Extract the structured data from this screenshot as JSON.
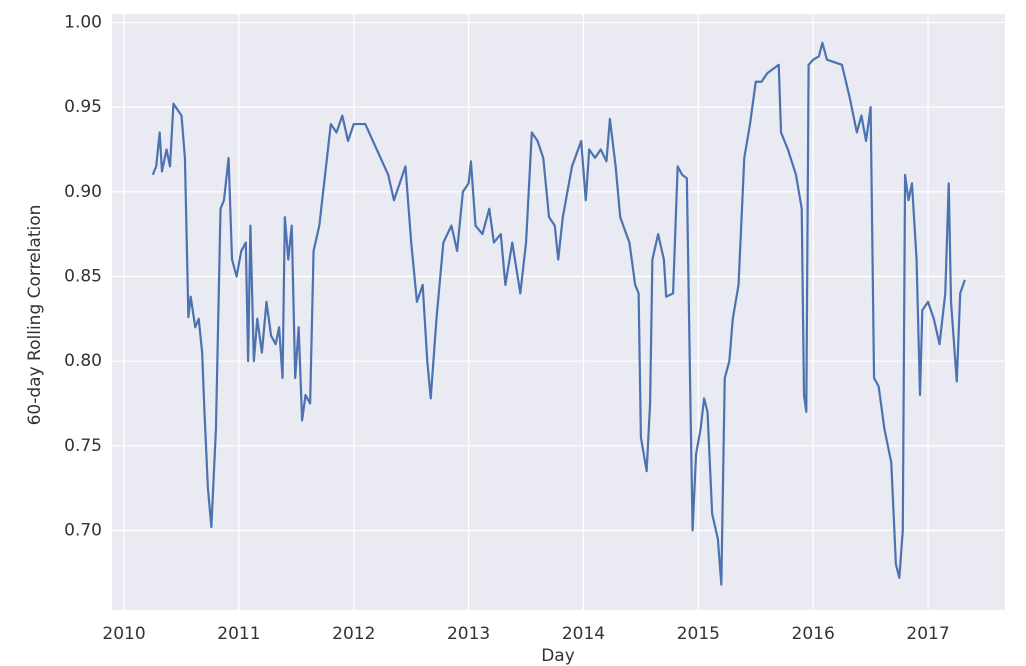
{
  "chart_data": {
    "type": "line",
    "x_label": "Day",
    "y_label": "60-day Rolling Correlation",
    "color": "#4c72b0",
    "grid": true,
    "background": "#eaeaf2",
    "xlim": [
      2009.895,
      2017.67
    ],
    "xticks": [
      2010,
      2011,
      2012,
      2013,
      2014,
      2015,
      2016,
      2017
    ],
    "ylim": [
      0.653,
      1.005
    ],
    "yticks": [
      {
        "value": 0.7,
        "label": "0.70"
      },
      0.75,
      {
        "value": 0.8,
        "label": "0.80"
      },
      0.85,
      {
        "value": 0.9,
        "label": "0.90"
      },
      0.95,
      {
        "value": 1.0,
        "label": "1.00"
      }
    ],
    "x": [
      2010.25,
      2010.28,
      2010.31,
      2010.33,
      2010.37,
      2010.4,
      2010.43,
      2010.47,
      2010.5,
      2010.53,
      2010.56,
      2010.58,
      2010.62,
      2010.65,
      2010.68,
      2010.7,
      2010.73,
      2010.76,
      2010.8,
      2010.84,
      2010.87,
      2010.91,
      2010.94,
      2010.98,
      2011.02,
      2011.06,
      2011.08,
      2011.1,
      2011.13,
      2011.16,
      2011.2,
      2011.24,
      2011.28,
      2011.32,
      2011.35,
      2011.38,
      2011.4,
      2011.43,
      2011.46,
      2011.49,
      2011.52,
      2011.55,
      2011.58,
      2011.62,
      2011.65,
      2011.7,
      2011.75,
      2011.8,
      2011.85,
      2011.9,
      2011.95,
      2012.0,
      2012.1,
      2012.2,
      2012.3,
      2012.35,
      2012.45,
      2012.5,
      2012.55,
      2012.6,
      2012.64,
      2012.67,
      2012.72,
      2012.78,
      2012.85,
      2012.9,
      2012.95,
      2013.0,
      2013.02,
      2013.06,
      2013.12,
      2013.18,
      2013.22,
      2013.28,
      2013.32,
      2013.38,
      2013.45,
      2013.5,
      2013.55,
      2013.6,
      2013.65,
      2013.7,
      2013.75,
      2013.78,
      2013.82,
      2013.9,
      2013.98,
      2014.02,
      2014.05,
      2014.1,
      2014.15,
      2014.2,
      2014.23,
      2014.28,
      2014.32,
      2014.4,
      2014.45,
      2014.48,
      2014.5,
      2014.55,
      2014.58,
      2014.6,
      2014.65,
      2014.7,
      2014.72,
      2014.78,
      2014.82,
      2014.86,
      2014.9,
      2014.93,
      2014.95,
      2014.98,
      2015.02,
      2015.05,
      2015.08,
      2015.12,
      2015.17,
      2015.2,
      2015.23,
      2015.27,
      2015.3,
      2015.35,
      2015.4,
      2015.45,
      2015.5,
      2015.55,
      2015.6,
      2015.7,
      2015.72,
      2015.78,
      2015.85,
      2015.9,
      2015.92,
      2015.94,
      2015.96,
      2016.0,
      2016.05,
      2016.08,
      2016.12,
      2016.25,
      2016.32,
      2016.38,
      2016.42,
      2016.46,
      2016.5,
      2016.53,
      2016.57,
      2016.62,
      2016.68,
      2016.72,
      2016.75,
      2016.78,
      2016.8,
      2016.83,
      2016.86,
      2016.9,
      2016.93,
      2016.95,
      2017.0,
      2017.05,
      2017.1,
      2017.15,
      2017.18,
      2017.2,
      2017.25,
      2017.28,
      2017.32
    ],
    "values": [
      0.91,
      0.915,
      0.935,
      0.912,
      0.925,
      0.915,
      0.952,
      0.948,
      0.945,
      0.92,
      0.826,
      0.838,
      0.82,
      0.825,
      0.805,
      0.77,
      0.725,
      0.702,
      0.76,
      0.89,
      0.895,
      0.92,
      0.86,
      0.85,
      0.865,
      0.87,
      0.8,
      0.88,
      0.8,
      0.825,
      0.805,
      0.835,
      0.815,
      0.81,
      0.82,
      0.79,
      0.885,
      0.86,
      0.88,
      0.79,
      0.82,
      0.765,
      0.78,
      0.775,
      0.865,
      0.88,
      0.91,
      0.94,
      0.935,
      0.945,
      0.93,
      0.94,
      0.94,
      0.925,
      0.91,
      0.895,
      0.915,
      0.87,
      0.835,
      0.845,
      0.8,
      0.778,
      0.825,
      0.87,
      0.88,
      0.865,
      0.9,
      0.905,
      0.918,
      0.88,
      0.875,
      0.89,
      0.87,
      0.875,
      0.845,
      0.87,
      0.84,
      0.87,
      0.935,
      0.93,
      0.92,
      0.885,
      0.88,
      0.86,
      0.885,
      0.915,
      0.93,
      0.895,
      0.925,
      0.92,
      0.925,
      0.918,
      0.943,
      0.915,
      0.885,
      0.87,
      0.845,
      0.84,
      0.755,
      0.735,
      0.775,
      0.86,
      0.875,
      0.86,
      0.838,
      0.84,
      0.915,
      0.91,
      0.908,
      0.78,
      0.7,
      0.745,
      0.76,
      0.778,
      0.77,
      0.71,
      0.695,
      0.668,
      0.79,
      0.8,
      0.825,
      0.845,
      0.92,
      0.94,
      0.965,
      0.965,
      0.97,
      0.975,
      0.935,
      0.925,
      0.91,
      0.89,
      0.78,
      0.77,
      0.975,
      0.978,
      0.98,
      0.988,
      0.978,
      0.975,
      0.955,
      0.935,
      0.945,
      0.93,
      0.95,
      0.79,
      0.785,
      0.76,
      0.74,
      0.68,
      0.672,
      0.7,
      0.91,
      0.895,
      0.905,
      0.86,
      0.78,
      0.83,
      0.835,
      0.825,
      0.81,
      0.84,
      0.905,
      0.835,
      0.788,
      0.84,
      0.848
    ]
  }
}
